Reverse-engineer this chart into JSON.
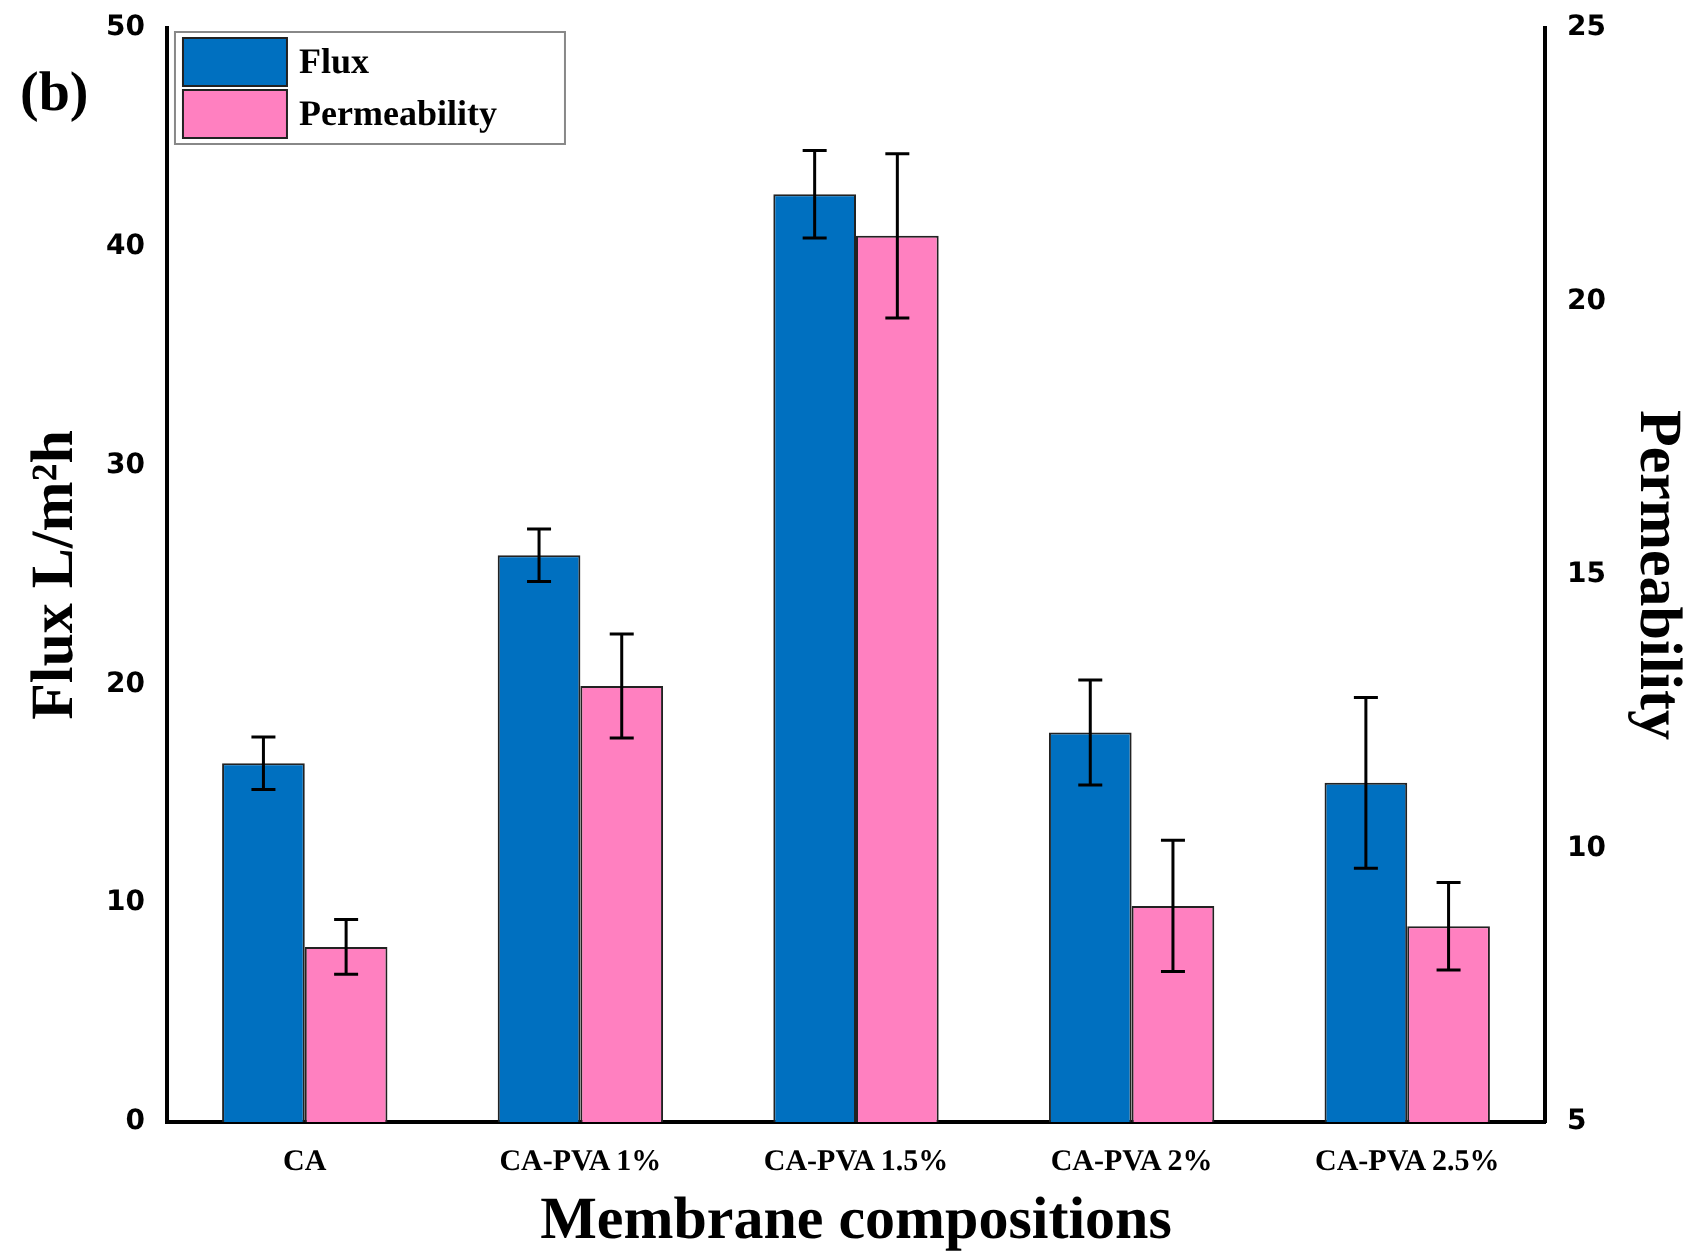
{
  "chart_data": {
    "type": "bar",
    "xlabel": "Membrane compositions",
    "ylabel": "Flux L/m²h",
    "y2label": "Permeability",
    "categories": [
      "CA",
      "CA-PVA 1%",
      "CA-PVA 1.5%",
      "CA-PVA 2%",
      "CA-PVA 2.5%"
    ],
    "series": [
      {
        "name": "Flux",
        "color": "#0070c0",
        "values": [
          16.4,
          25.9,
          42.4,
          17.8,
          15.5
        ],
        "errors": [
          1.2,
          1.2,
          2,
          2.4,
          3.9
        ]
      },
      {
        "name": "Permeability",
        "color": "#ff80c0",
        "axis": "y2",
        "values": [
          8.2,
          12.97,
          21.2,
          8.95,
          8.58
        ],
        "errors": [
          0.5,
          0.95,
          1.5,
          1.2,
          0.8
        ]
      }
    ],
    "ylim": [
      0,
      50
    ],
    "yticks": [
      0,
      10,
      20,
      30,
      40,
      50
    ],
    "y2lim": [
      5,
      25
    ],
    "y2ticks": [
      5,
      10,
      15,
      20,
      25
    ],
    "grid": false,
    "legend": "top left",
    "annotations": [
      "(b)"
    ]
  }
}
